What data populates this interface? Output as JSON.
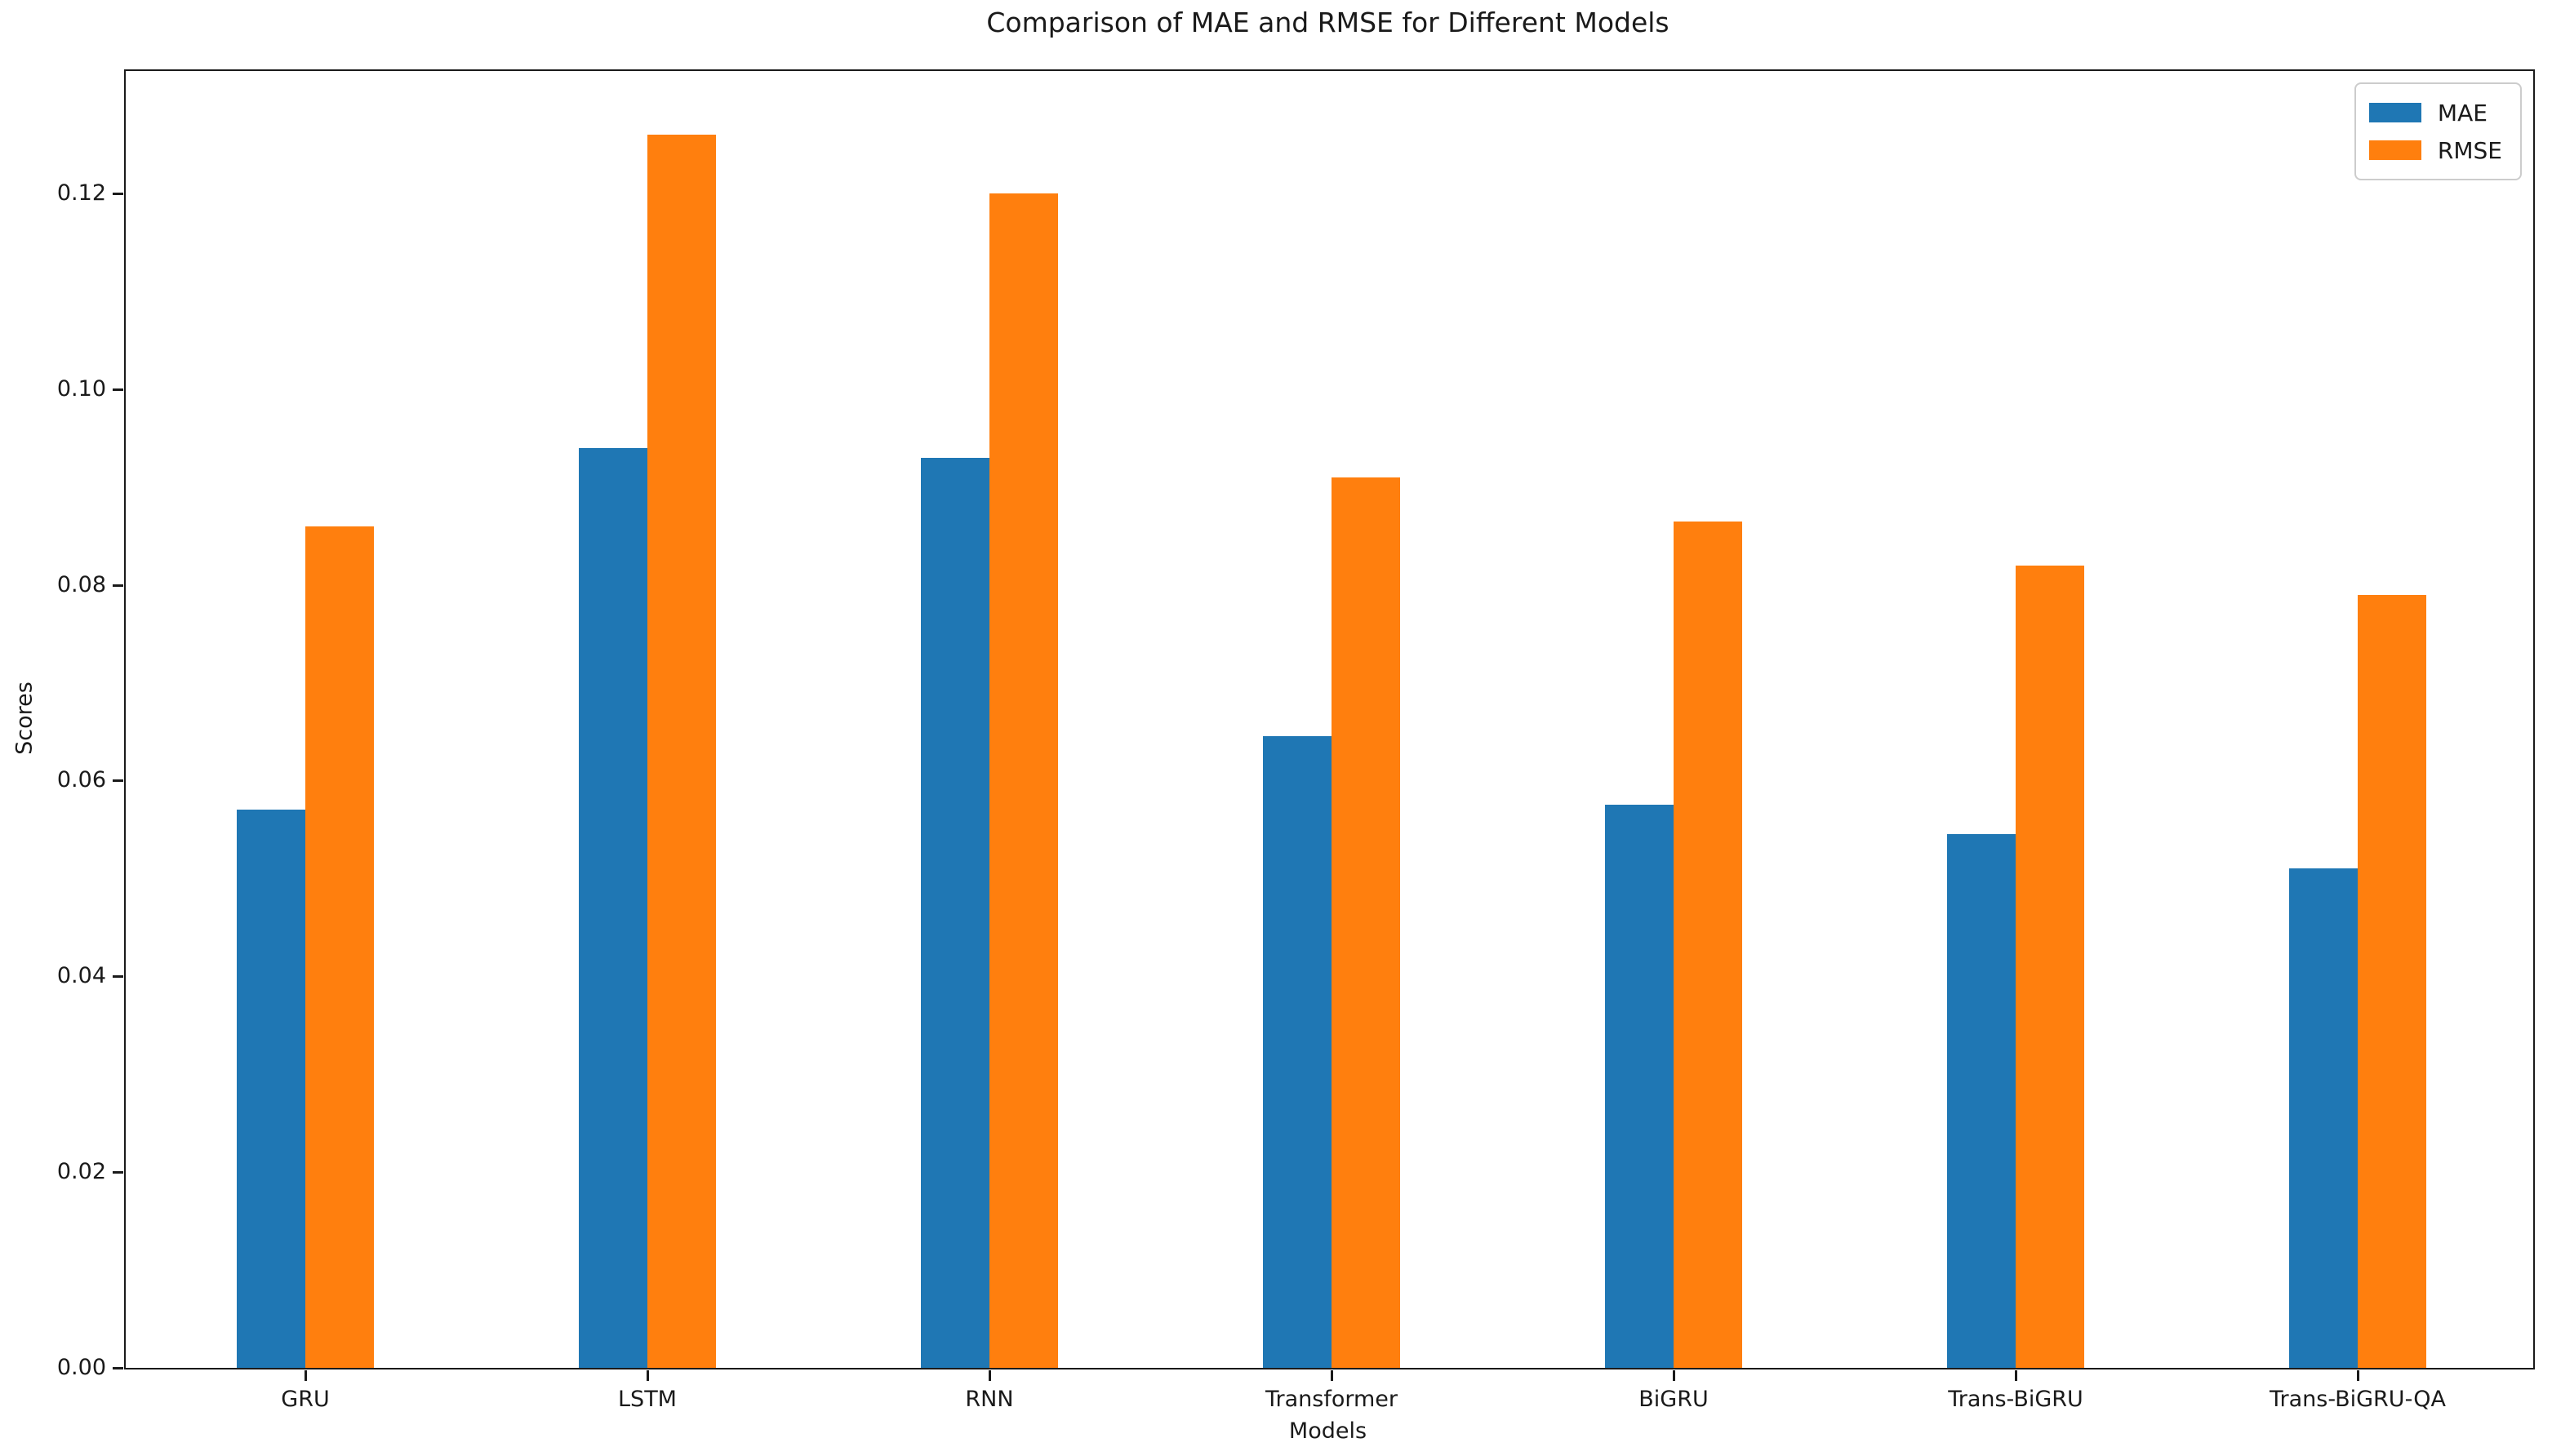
{
  "chart_data": {
    "type": "bar",
    "title": "Comparison of MAE and RMSE for Different Models",
    "xlabel": "Models",
    "ylabel": "Scores",
    "categories": [
      "GRU",
      "LSTM",
      "RNN",
      "Transformer",
      "BiGRU",
      "Trans-BiGRU",
      "Trans-BiGRU-QA"
    ],
    "series": [
      {
        "name": "MAE",
        "color": "#1f77b4",
        "values": [
          0.057,
          0.094,
          0.093,
          0.0645,
          0.0575,
          0.0545,
          0.051
        ]
      },
      {
        "name": "RMSE",
        "color": "#ff7f0e",
        "values": [
          0.086,
          0.126,
          0.12,
          0.091,
          0.0865,
          0.082,
          0.079
        ]
      }
    ],
    "ylim": [
      0,
      0.1325
    ],
    "yticks": [
      0.0,
      0.02,
      0.04,
      0.06,
      0.08,
      0.1,
      0.12
    ],
    "ytick_labels": [
      "0.00",
      "0.02",
      "0.04",
      "0.06",
      "0.08",
      "0.10",
      "0.12"
    ],
    "legend_position": "upper right",
    "grid": false,
    "colors": {
      "mae": "#1f77b4",
      "rmse": "#ff7f0e",
      "spine": "#1a1a1a",
      "legend_border": "#cccccc"
    }
  }
}
